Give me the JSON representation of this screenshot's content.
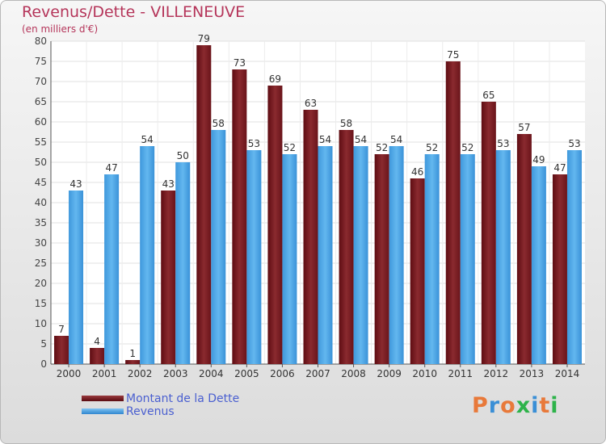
{
  "title": "Revenus/Dette - VILLENEUVE",
  "subtitle": "(en milliers d'€)",
  "brand": {
    "text": "Proxiti",
    "colors": [
      "#e8793a",
      "#3a8fd6",
      "#e8793a",
      "#2db34a",
      "#3a8fd6",
      "#e8793a",
      "#2db34a"
    ]
  },
  "chart_data": {
    "type": "bar",
    "title": "Revenus/Dette - VILLENEUVE",
    "subtitle": "(en milliers d'€)",
    "xlabel": "",
    "ylabel": "",
    "ylim": [
      0,
      80
    ],
    "yticks": [
      0,
      5,
      10,
      15,
      20,
      25,
      30,
      35,
      40,
      45,
      50,
      55,
      60,
      65,
      70,
      75,
      80
    ],
    "grid": true,
    "legend_position": "bottom-left",
    "categories": [
      "2000",
      "2001",
      "2002",
      "2003",
      "2004",
      "2005",
      "2006",
      "2007",
      "2008",
      "2009",
      "2010",
      "2011",
      "2012",
      "2013",
      "2014"
    ],
    "series": [
      {
        "name": "Montant de la Dette",
        "color": "#7a1f24",
        "values": [
          7,
          4,
          1,
          43,
          79,
          73,
          69,
          63,
          58,
          52,
          46,
          75,
          65,
          57,
          47
        ]
      },
      {
        "name": "Revenus",
        "color": "#4aa6e8",
        "values": [
          43,
          47,
          54,
          50,
          58,
          53,
          52,
          54,
          54,
          54,
          52,
          52,
          53,
          49,
          53
        ]
      }
    ]
  }
}
